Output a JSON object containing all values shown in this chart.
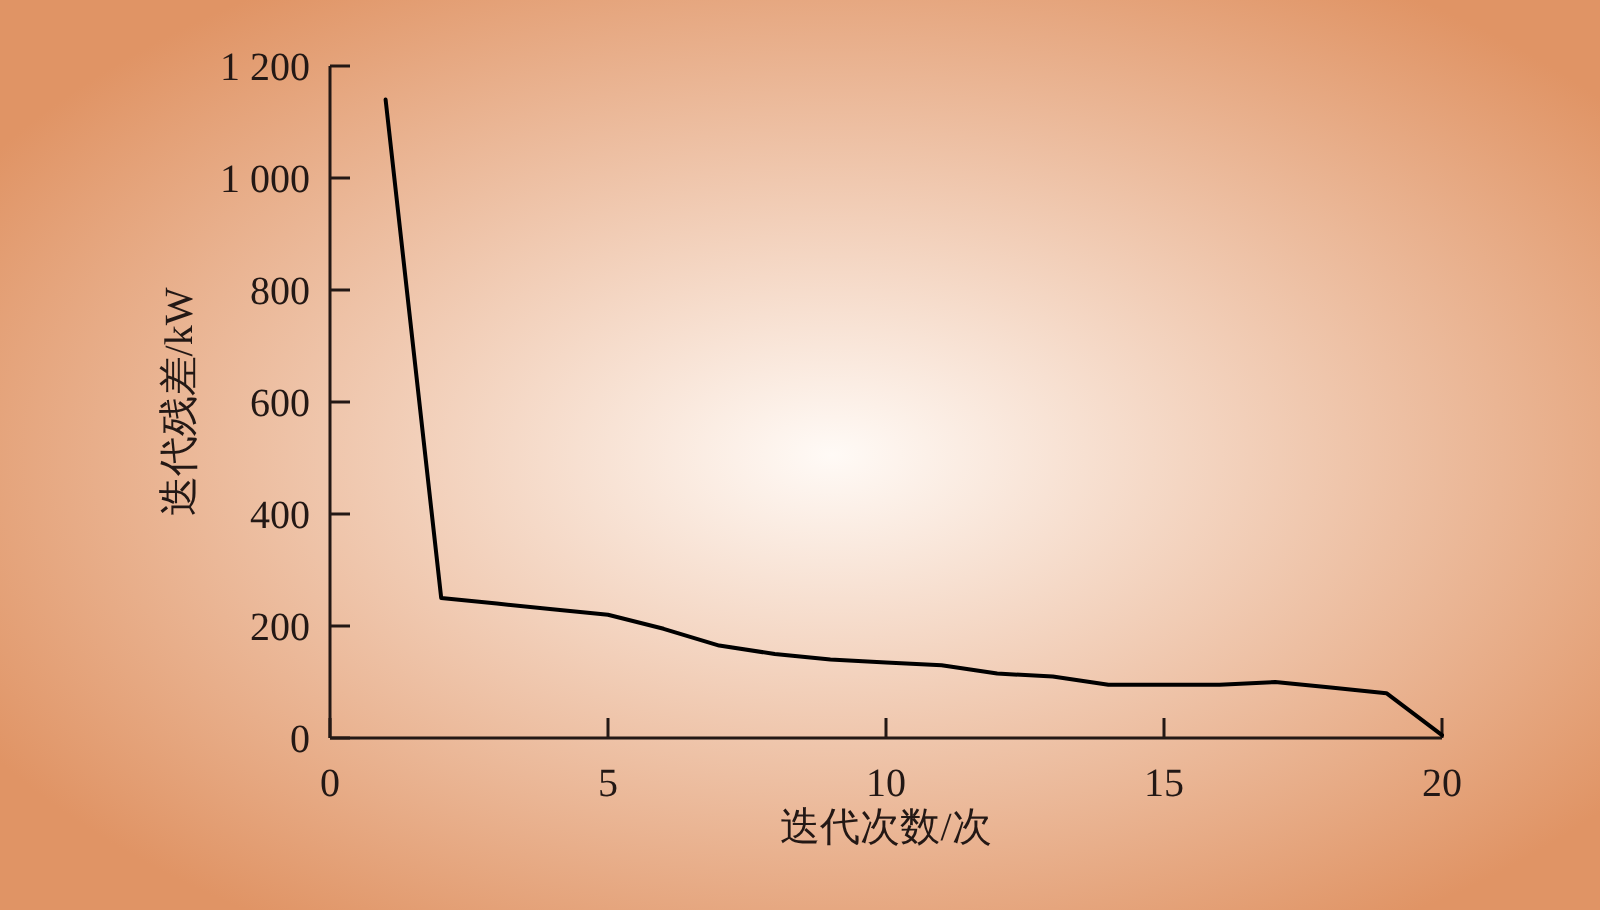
{
  "chart_data": {
    "type": "line",
    "xlabel": "迭代次数/次",
    "ylabel": "迭代残差/kW",
    "x": [
      1,
      2,
      3,
      4,
      5,
      6,
      7,
      8,
      9,
      10,
      11,
      12,
      13,
      14,
      15,
      16,
      17,
      18,
      19,
      20
    ],
    "series": [
      {
        "color": "#000000",
        "values": [
          1140,
          250,
          240,
          230,
          220,
          195,
          165,
          150,
          140,
          135,
          130,
          115,
          110,
          95,
          95,
          95,
          100,
          90,
          80,
          5
        ]
      }
    ],
    "xlim": [
      0,
      20
    ],
    "xticks": [
      0,
      5,
      10,
      15,
      20
    ],
    "ylim": [
      0,
      1200
    ],
    "yticks": [
      0,
      200,
      400,
      600,
      800,
      {
        "value": 1000,
        "label": "1 000"
      },
      {
        "value": 1200,
        "label": "1 200"
      }
    ],
    "marker": "none",
    "line_style": "solid"
  }
}
